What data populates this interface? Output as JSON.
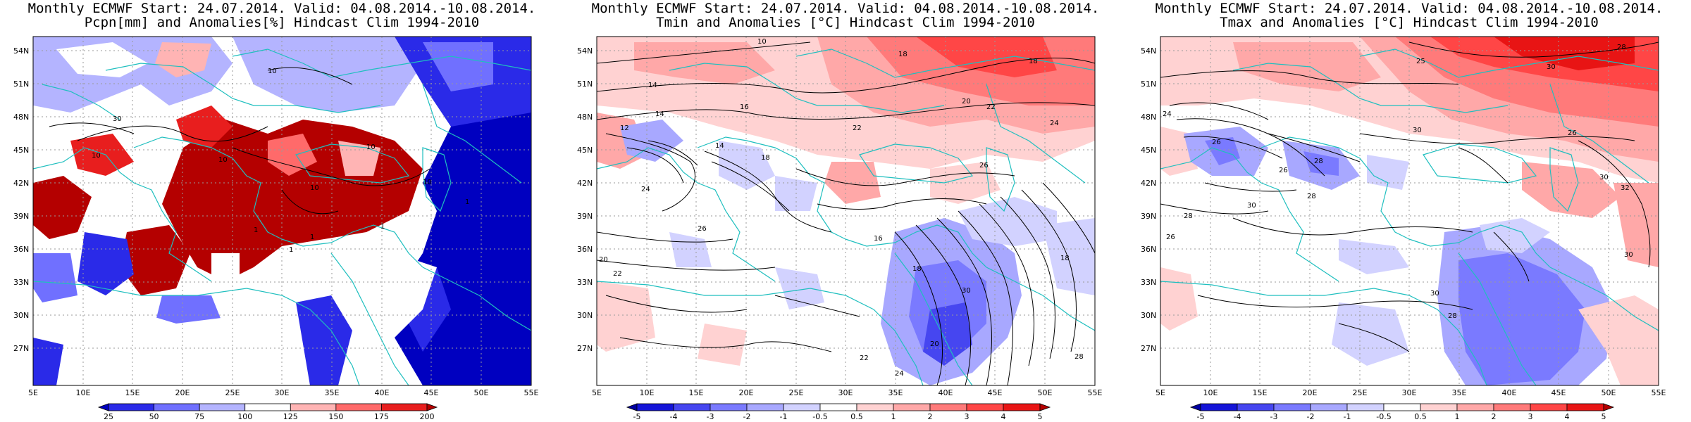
{
  "panels": [
    {
      "id": "pcpn",
      "title_line1": "Monthly ECMWF Start: 24.07.2014. Valid: 04.08.2014.-10.08.2014.",
      "title_line2": "Pcpn[mm] and Anomalies[%] Hindcast Clim 1994-2010",
      "lat_labels": [
        "54N",
        "51N",
        "48N",
        "45N",
        "42N",
        "39N",
        "36N",
        "33N",
        "30N",
        "27N"
      ],
      "lon_labels": [
        "5E",
        "10E",
        "15E",
        "20E",
        "25E",
        "30E",
        "35E",
        "40E",
        "45E",
        "50E",
        "55E"
      ],
      "colorbar": {
        "labels": [
          "25",
          "50",
          "75",
          "100",
          "125",
          "150",
          "175",
          "200"
        ],
        "colors": [
          "#0000c0",
          "#2a2ae8",
          "#7070ff",
          "#b4b4ff",
          "#ffffff",
          "#ffb4b4",
          "#ff6a6a",
          "#e81e1e",
          "#b40000"
        ]
      },
      "contour_labels": [
        "10",
        "10",
        "10",
        "10",
        "10",
        "10",
        "30",
        "1",
        "1",
        "1",
        "1",
        "1"
      ]
    },
    {
      "id": "tmin",
      "title_line1": "Monthly ECMWF Start: 24.07.2014. Valid: 04.08.2014.-10.08.2014.",
      "title_line2": "Tmin and Anomalies [°C] Hindcast Clim 1994-2010",
      "lat_labels": [
        "54N",
        "51N",
        "48N",
        "45N",
        "42N",
        "39N",
        "36N",
        "33N",
        "30N",
        "27N"
      ],
      "lon_labels": [
        "5E",
        "10E",
        "15E",
        "20E",
        "25E",
        "30E",
        "35E",
        "40E",
        "45E",
        "50E",
        "55E"
      ],
      "colorbar": {
        "labels": [
          "-5",
          "-4",
          "-3",
          "-2",
          "-1",
          "-0.5",
          "0.5",
          "1",
          "2",
          "3",
          "4",
          "5"
        ],
        "colors": [
          "#0000a0",
          "#1414d8",
          "#4646f0",
          "#7a7aff",
          "#a8a8ff",
          "#d2d2ff",
          "#ffffff",
          "#ffd2d2",
          "#ffa8a8",
          "#ff7a7a",
          "#ff4646",
          "#e81414",
          "#b40000"
        ]
      },
      "contour_labels": [
        "18",
        "10",
        "14",
        "12",
        "14",
        "16",
        "18",
        "20",
        "22",
        "22",
        "24",
        "14",
        "18",
        "24",
        "26",
        "20",
        "22",
        "26",
        "18",
        "30",
        "18",
        "20",
        "22",
        "24",
        "16",
        "28"
      ]
    },
    {
      "id": "tmax",
      "title_line1": "Monthly ECMWF Start: 24.07.2014. Valid: 04.08.2014.-10.08.2014.",
      "title_line2": "Tmax and Anomalies [°C] Hindcast Clim 1994-2010",
      "lat_labels": [
        "54N",
        "51N",
        "48N",
        "45N",
        "42N",
        "39N",
        "36N",
        "33N",
        "30N",
        "27N"
      ],
      "lon_labels": [
        "5E",
        "10E",
        "15E",
        "20E",
        "25E",
        "30E",
        "35E",
        "40E",
        "45E",
        "50E",
        "55E"
      ],
      "colorbar": {
        "labels": [
          "-5",
          "-4",
          "-3",
          "-2",
          "-1",
          "-0.5",
          "0.5",
          "1",
          "2",
          "3",
          "4",
          "5"
        ],
        "colors": [
          "#0000a0",
          "#1414d8",
          "#4646f0",
          "#7a7aff",
          "#a8a8ff",
          "#d2d2ff",
          "#ffffff",
          "#ffd2d2",
          "#ffa8a8",
          "#ff7a7a",
          "#ff4646",
          "#e81414",
          "#b40000"
        ]
      },
      "contour_labels": [
        "28",
        "25",
        "30",
        "24",
        "26",
        "30",
        "26",
        "28",
        "26",
        "30",
        "32",
        "28",
        "30",
        "28",
        "26",
        "30",
        "28",
        "30"
      ]
    }
  ]
}
